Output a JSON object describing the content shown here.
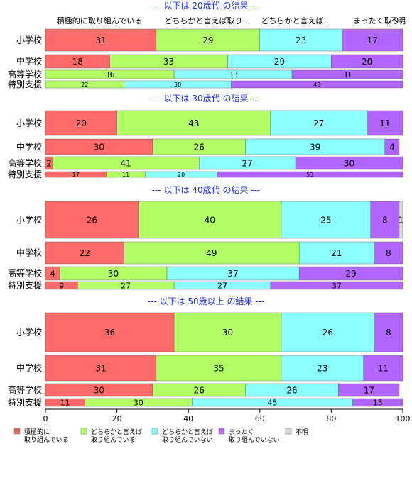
{
  "chart_data": {
    "type": "bar",
    "orientation": "horizontal",
    "stacked": "percent",
    "xlim": [
      0,
      100
    ],
    "x_ticks": [
      "0",
      "20",
      "40",
      "60",
      "80",
      "100"
    ],
    "column_headers": [
      "積極的に取り組んでいる",
      "どちらかと言えば取り..",
      "どちらかと言えば..",
      "まったく取り",
      "不明"
    ],
    "series_names": [
      "積極的に\n取り組んでいる",
      "どちらかと言えば\n取り組んでいる",
      "どちらかと言えば\n取り組んでいない",
      "まったく\n取り組んでいない",
      "不明"
    ],
    "colors": [
      "#ff6b6b",
      "#b3ff66",
      "#8cffff",
      "#b266ff",
      "#d9d9d9"
    ],
    "panels": [
      {
        "title": "--- 以下は 20歳代 の結果 ---",
        "rows": [
          {
            "label": "小学校",
            "values": [
              31,
              29,
              23,
              17,
              0
            ]
          },
          {
            "label": "中学校",
            "values": [
              18,
              33,
              29,
              20,
              0
            ]
          },
          {
            "label": "高等学校",
            "values": [
              0,
              36,
              33,
              31,
              0
            ]
          },
          {
            "label": "特別支援",
            "values": [
              0,
              22,
              30,
              48,
              0
            ]
          }
        ]
      },
      {
        "title": "--- 以下は 30歳代 の結果 ---",
        "rows": [
          {
            "label": "小学校",
            "values": [
              20,
              43,
              27,
              11,
              0
            ]
          },
          {
            "label": "中学校",
            "values": [
              30,
              26,
              39,
              4,
              0
            ]
          },
          {
            "label": "高等学校",
            "values": [
              2,
              41,
              27,
              30,
              0
            ]
          },
          {
            "label": "特別支援",
            "values": [
              17,
              11,
              20,
              53,
              0
            ]
          }
        ]
      },
      {
        "title": "--- 以下は 40歳代 の結果 ---",
        "rows": [
          {
            "label": "小学校",
            "values": [
              26,
              40,
              25,
              8,
              1
            ]
          },
          {
            "label": "中学校",
            "values": [
              22,
              49,
              21,
              8,
              0
            ]
          },
          {
            "label": "高等学校",
            "values": [
              4,
              30,
              37,
              29,
              0
            ]
          },
          {
            "label": "特別支援",
            "values": [
              9,
              27,
              27,
              37,
              0
            ]
          }
        ]
      },
      {
        "title": "--- 以下は 50歳以上 の結果 ---",
        "rows": [
          {
            "label": "小学校",
            "values": [
              36,
              30,
              26,
              8,
              0
            ]
          },
          {
            "label": "中学校",
            "values": [
              31,
              35,
              23,
              11,
              0
            ]
          },
          {
            "label": "高等学校",
            "values": [
              30,
              26,
              26,
              17,
              0
            ]
          },
          {
            "label": "特別支援",
            "values": [
              11,
              30,
              45,
              15,
              0
            ]
          }
        ]
      }
    ]
  }
}
